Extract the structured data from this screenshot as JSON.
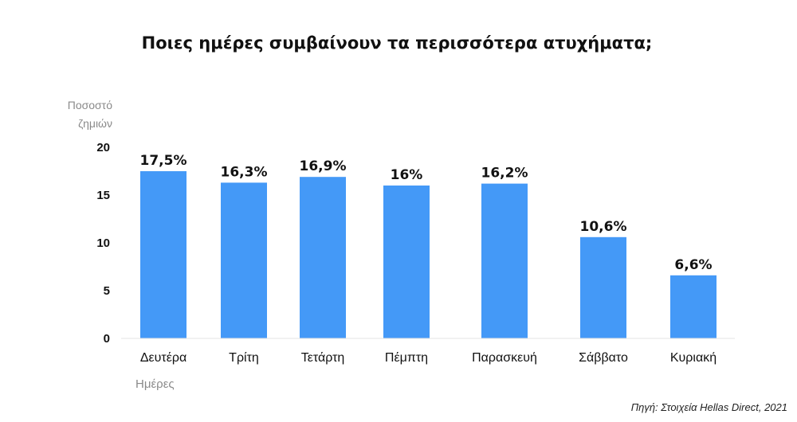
{
  "chart_data": {
    "type": "bar",
    "title": "Ποιες ημέρες συμβαίνουν τα περισσότερα ατυχήματα;",
    "ylabel": [
      "Ποσοστό",
      "ζημιών"
    ],
    "xlabel": "Ημέρες",
    "categories": [
      "Δευτέρα",
      "Τρίτη",
      "Τετάρτη",
      "Πέμπτη",
      "Παρασκευή",
      "Σάββατο",
      "Κυριακή"
    ],
    "values": [
      17.5,
      16.3,
      16.9,
      16,
      16.2,
      10.6,
      6.6
    ],
    "value_labels": [
      "17,5%",
      "16,3%",
      "16,9%",
      "16%",
      "16,2%",
      "10,6%",
      "6,6%"
    ],
    "ylim": [
      0,
      20
    ],
    "yticks": [
      "0",
      "5",
      "10",
      "15",
      "20"
    ],
    "grid": false,
    "legend": "none",
    "bar_color": "#4499f7",
    "source": "Πηγή: Στοιχεία Hellas Direct, 2021"
  }
}
